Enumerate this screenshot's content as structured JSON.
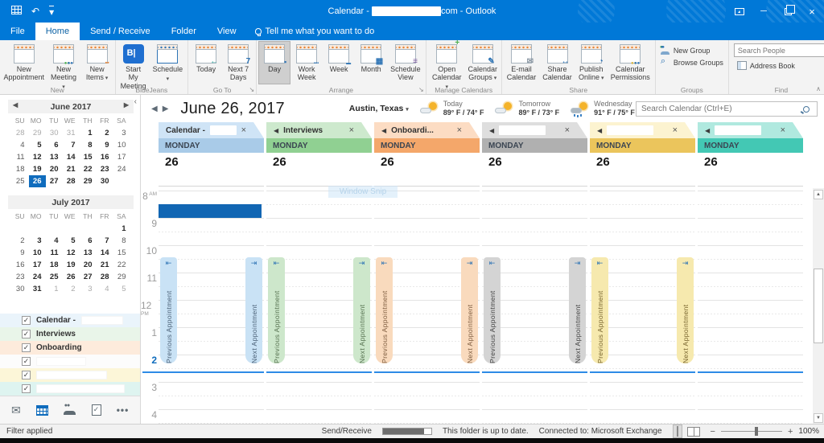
{
  "window": {
    "title_prefix": "Calendar - ",
    "title_suffix": "com - Outlook"
  },
  "ribbon_tabs": {
    "tabs": [
      {
        "label": "File"
      },
      {
        "label": "Home",
        "active": true
      },
      {
        "label": "Send / Receive"
      },
      {
        "label": "Folder"
      },
      {
        "label": "View"
      }
    ],
    "tell_me": "Tell me what you want to do"
  },
  "ribbon": {
    "groups": [
      {
        "label": "New",
        "buttons": [
          {
            "label": "New\nAppointment",
            "icon": "new-appointment"
          },
          {
            "label": "New\nMeeting",
            "icon": "new-meeting",
            "dropdown": true
          },
          {
            "label": "New\nItems",
            "icon": "new-items",
            "dropdown": true
          }
        ]
      },
      {
        "label": "BlueJeans",
        "buttons": [
          {
            "label": "Start My\nMeeting",
            "icon": "bluejeans"
          },
          {
            "label": "Schedule",
            "icon": "schedule",
            "dropdown": true
          }
        ]
      },
      {
        "label": "Go To",
        "launcher": true,
        "buttons": [
          {
            "label": "Today",
            "icon": "today"
          },
          {
            "label": "Next 7\nDays",
            "icon": "next7"
          }
        ]
      },
      {
        "label": "Arrange",
        "launcher": true,
        "buttons": [
          {
            "label": "Day",
            "icon": "day",
            "selected": true
          },
          {
            "label": "Work\nWeek",
            "icon": "workweek"
          },
          {
            "label": "Week",
            "icon": "week"
          },
          {
            "label": "Month",
            "icon": "month"
          },
          {
            "label": "Schedule\nView",
            "icon": "scheduleview"
          }
        ]
      },
      {
        "label": "Manage Calendars",
        "buttons": [
          {
            "label": "Open\nCalendar",
            "icon": "open-calendar",
            "dropdown": true
          },
          {
            "label": "Calendar\nGroups",
            "icon": "calendar-groups",
            "dropdown": true
          }
        ]
      },
      {
        "label": "Share",
        "buttons": [
          {
            "label": "E-mail\nCalendar",
            "icon": "email-calendar"
          },
          {
            "label": "Share\nCalendar",
            "icon": "share-calendar"
          },
          {
            "label": "Publish\nOnline",
            "icon": "publish-online",
            "dropdown": true
          },
          {
            "label": "Calendar\nPermissions",
            "icon": "calendar-permissions"
          }
        ]
      },
      {
        "label": "Groups",
        "type": "small",
        "buttons": [
          {
            "label": "New Group",
            "icon": "new-group"
          },
          {
            "label": "Browse Groups",
            "icon": "browse-groups"
          }
        ]
      },
      {
        "label": "Find",
        "type": "find",
        "search_placeholder": "Search People",
        "address_book": "Address Book"
      }
    ]
  },
  "sidebar": {
    "mini_calendars": [
      {
        "title": "June 2017",
        "arrows": true,
        "weekdays": [
          "SU",
          "MO",
          "TU",
          "WE",
          "TH",
          "FR",
          "SA"
        ],
        "weeks": [
          [
            {
              "d": "28",
              "c": "m"
            },
            {
              "d": "29",
              "c": "m"
            },
            {
              "d": "30",
              "c": "m"
            },
            {
              "d": "31",
              "c": "m"
            },
            {
              "d": "1",
              "c": "b"
            },
            {
              "d": "2",
              "c": "b"
            },
            {
              "d": "3",
              "c": ""
            }
          ],
          [
            {
              "d": "4",
              "c": ""
            },
            {
              "d": "5",
              "c": "b"
            },
            {
              "d": "6",
              "c": "b"
            },
            {
              "d": "7",
              "c": "b"
            },
            {
              "d": "8",
              "c": "b"
            },
            {
              "d": "9",
              "c": "b"
            },
            {
              "d": "10",
              "c": ""
            }
          ],
          [
            {
              "d": "11",
              "c": ""
            },
            {
              "d": "12",
              "c": "b"
            },
            {
              "d": "13",
              "c": "b"
            },
            {
              "d": "14",
              "c": "b"
            },
            {
              "d": "15",
              "c": "b"
            },
            {
              "d": "16",
              "c": "b"
            },
            {
              "d": "17",
              "c": ""
            }
          ],
          [
            {
              "d": "18",
              "c": ""
            },
            {
              "d": "19",
              "c": "b"
            },
            {
              "d": "20",
              "c": "b"
            },
            {
              "d": "21",
              "c": "b"
            },
            {
              "d": "22",
              "c": "b"
            },
            {
              "d": "23",
              "c": "b"
            },
            {
              "d": "24",
              "c": ""
            }
          ],
          [
            {
              "d": "25",
              "c": ""
            },
            {
              "d": "26",
              "c": "s"
            },
            {
              "d": "27",
              "c": "b"
            },
            {
              "d": "28",
              "c": "b"
            },
            {
              "d": "29",
              "c": "b"
            },
            {
              "d": "30",
              "c": "b"
            },
            {
              "d": "",
              "c": "e"
            }
          ]
        ]
      },
      {
        "title": "July 2017",
        "arrows": false,
        "weekdays": [
          "SU",
          "MO",
          "TU",
          "WE",
          "TH",
          "FR",
          "SA"
        ],
        "weeks": [
          [
            {
              "d": "",
              "c": "e"
            },
            {
              "d": "",
              "c": "e"
            },
            {
              "d": "",
              "c": "e"
            },
            {
              "d": "",
              "c": "e"
            },
            {
              "d": "",
              "c": "e"
            },
            {
              "d": "",
              "c": "e"
            },
            {
              "d": "1",
              "c": "b"
            }
          ],
          [
            {
              "d": "2",
              "c": ""
            },
            {
              "d": "3",
              "c": "b"
            },
            {
              "d": "4",
              "c": "b"
            },
            {
              "d": "5",
              "c": "b"
            },
            {
              "d": "6",
              "c": "b"
            },
            {
              "d": "7",
              "c": "b"
            },
            {
              "d": "8",
              "c": ""
            }
          ],
          [
            {
              "d": "9",
              "c": ""
            },
            {
              "d": "10",
              "c": "b"
            },
            {
              "d": "11",
              "c": "b"
            },
            {
              "d": "12",
              "c": "b"
            },
            {
              "d": "13",
              "c": "b"
            },
            {
              "d": "14",
              "c": "b"
            },
            {
              "d": "15",
              "c": ""
            }
          ],
          [
            {
              "d": "16",
              "c": ""
            },
            {
              "d": "17",
              "c": "b"
            },
            {
              "d": "18",
              "c": "b"
            },
            {
              "d": "19",
              "c": "b"
            },
            {
              "d": "20",
              "c": "b"
            },
            {
              "d": "21",
              "c": "b"
            },
            {
              "d": "22",
              "c": ""
            }
          ],
          [
            {
              "d": "23",
              "c": ""
            },
            {
              "d": "24",
              "c": "b"
            },
            {
              "d": "25",
              "c": "b"
            },
            {
              "d": "26",
              "c": "b"
            },
            {
              "d": "27",
              "c": "b"
            },
            {
              "d": "28",
              "c": "b"
            },
            {
              "d": "29",
              "c": ""
            }
          ],
          [
            {
              "d": "30",
              "c": ""
            },
            {
              "d": "31",
              "c": "b"
            },
            {
              "d": "1",
              "c": "m"
            },
            {
              "d": "2",
              "c": "m"
            },
            {
              "d": "3",
              "c": "m"
            },
            {
              "d": "4",
              "c": "m"
            },
            {
              "d": "5",
              "c": "m"
            }
          ]
        ]
      }
    ],
    "calendars": [
      {
        "label": "Calendar - ",
        "redacted": true,
        "redact_w": 52,
        "bg": "#eaf4fb",
        "checked": true
      },
      {
        "label": "Interviews",
        "redacted": false,
        "bg": "#e9f5e9",
        "checked": true
      },
      {
        "label": "Onboarding",
        "redacted": false,
        "bg": "#fdebdc",
        "checked": true
      },
      {
        "label": "",
        "redacted": true,
        "redact_w": 62,
        "bg": "#fcfcfc",
        "checked": true
      },
      {
        "label": "",
        "redacted": true,
        "redact_w": 88,
        "bg": "#fcf6d8",
        "checked": true
      },
      {
        "label": "",
        "redacted": true,
        "redact_w": 110,
        "bg": "#def4f0",
        "checked": true
      }
    ]
  },
  "calendar": {
    "date_title": "June 26, 2017",
    "location": "Austin, Texas",
    "weather": [
      {
        "day": "Today",
        "temps": "89° F / 74° F",
        "icon": "partly-sunny"
      },
      {
        "day": "Tomorrow",
        "temps": "89° F / 73° F",
        "icon": "partly-sunny"
      },
      {
        "day": "Wednesday",
        "temps": "91° F / 75° F",
        "icon": "rain"
      }
    ],
    "search_placeholder": "Search Calendar (Ctrl+E)",
    "day_label": "MONDAY",
    "day_number": "26",
    "hours": [
      {
        "t": "8",
        "s": "AM"
      },
      {
        "t": "9"
      },
      {
        "t": "10"
      },
      {
        "t": "11"
      },
      {
        "t": "12",
        "s": "PM"
      },
      {
        "t": "1"
      },
      {
        "t": "2",
        "current": true
      },
      {
        "t": "3"
      },
      {
        "t": "4"
      }
    ],
    "prev_label": "Previous Appointment",
    "next_label": "Next Appointment",
    "watermark": "Window Snip",
    "columns": [
      {
        "name": "Calendar -",
        "redacted": true,
        "back": false,
        "tab": "#cfe4f6",
        "band": "#a9cbe8",
        "tag": "#c9e2f5",
        "tag_text": "#4a6076",
        "busy": "#1166b3",
        "tags": true
      },
      {
        "name": "Interviews",
        "redacted": false,
        "back": true,
        "tab": "#cde9cd",
        "band": "#90d092",
        "tag": "#cde7cb",
        "tag_text": "#55704f",
        "tags": true
      },
      {
        "name": "Onboardi...",
        "redacted": false,
        "back": true,
        "tab": "#fcdcc3",
        "band": "#f4a76a",
        "tag": "#f9dabd",
        "tag_text": "#7d5c3f",
        "tags": true
      },
      {
        "name": "",
        "redacted": true,
        "back": true,
        "tab": "#dedede",
        "band": "#b0b0b0",
        "tag": "#d4d4d4",
        "tag_text": "#3f3f3f",
        "tags": true
      },
      {
        "name": "",
        "redacted": true,
        "back": true,
        "tab": "#fcf3d0",
        "band": "#ebc55c",
        "tag": "#f6e9ae",
        "tag_text": "#77642e",
        "tags": true
      },
      {
        "name": "",
        "redacted": true,
        "back": true,
        "tab": "#b0e9df",
        "band": "#43c8b4",
        "tags": false
      }
    ]
  },
  "status_bar": {
    "filter": "Filter applied",
    "send_receive": "Send/Receive",
    "progress_pct": 85,
    "folder_status": "This folder is up to date.",
    "connection": "Connected to: Microsoft Exchange",
    "zoom": "100%"
  }
}
